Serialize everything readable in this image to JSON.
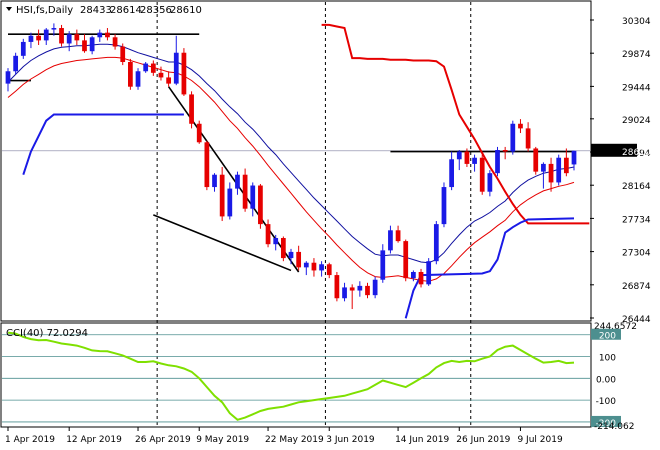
{
  "header": {
    "symbol_label": "HSI,fs,Daily",
    "ohlc": [
      "28433",
      "28614",
      "28356",
      "28610"
    ],
    "arrow_color": "#000000"
  },
  "indicator": {
    "label": "CCI(40) 72.0294",
    "levels": [
      100,
      0,
      -100,
      200,
      -200
    ],
    "scale_labels": [
      "244.6572",
      "200",
      "100",
      "0.00",
      "-100",
      "-200",
      "-214.062"
    ],
    "line_color": "#7fe000",
    "level_color": "#4d8f8f"
  },
  "colors": {
    "bull": "#1a1ae6",
    "bear": "#e60000",
    "ma_fast": "#1010a0",
    "ma_slow": "#e60000",
    "envelope": "#e60000",
    "support": "#1a1ae6",
    "current_price_box": "#000000"
  },
  "chart_data": {
    "type": "candlestick",
    "y_ticks": [
      30304,
      29874,
      29444,
      29024,
      28594,
      28164,
      27734,
      27304,
      26874,
      26444
    ],
    "ylim": [
      26444,
      30304
    ],
    "current_price": "28610",
    "x_tick_labels": [
      "1 Apr 2019",
      "12 Apr 2019",
      "26 Apr 2019",
      "9 May 2019",
      "22 May 2019",
      "3 Jun 2019",
      "14 Jun 2019",
      "26 Jun 2019",
      "9 Jul 2019"
    ],
    "x_tick_index": [
      0,
      8,
      17,
      25,
      34,
      42,
      51,
      59,
      67
    ],
    "n_bars": 75,
    "candles": [
      [
        29480,
        29680,
        29380,
        29640
      ],
      [
        29640,
        29880,
        29600,
        29840
      ],
      [
        29840,
        30060,
        29800,
        30020
      ],
      [
        30020,
        30140,
        29940,
        30100
      ],
      [
        30100,
        30180,
        29980,
        30040
      ],
      [
        30040,
        30200,
        29980,
        30180
      ],
      [
        30180,
        30260,
        30100,
        30200
      ],
      [
        30200,
        30240,
        29960,
        30000
      ],
      [
        30000,
        30160,
        29900,
        30120
      ],
      [
        30120,
        30180,
        29980,
        30040
      ],
      [
        30040,
        30120,
        29880,
        29900
      ],
      [
        29900,
        30100,
        29860,
        30080
      ],
      [
        30080,
        30180,
        30020,
        30140
      ],
      [
        30140,
        30200,
        30040,
        30080
      ],
      [
        30080,
        30120,
        29920,
        29960
      ],
      [
        29960,
        30000,
        29720,
        29760
      ],
      [
        29760,
        29800,
        29400,
        29440
      ],
      [
        29440,
        29680,
        29400,
        29640
      ],
      [
        29640,
        29760,
        29620,
        29740
      ],
      [
        29740,
        29780,
        29580,
        29620
      ],
      [
        29620,
        29700,
        29520,
        29560
      ],
      [
        29560,
        29640,
        29440,
        29480
      ],
      [
        29480,
        30100,
        29460,
        29880
      ],
      [
        29880,
        29940,
        29320,
        29340
      ],
      [
        29340,
        29380,
        28900,
        28960
      ],
      [
        28960,
        29000,
        28700,
        28720
      ],
      [
        28720,
        28740,
        28100,
        28140
      ],
      [
        28140,
        28320,
        28080,
        28300
      ],
      [
        28300,
        28400,
        27700,
        27760
      ],
      [
        27760,
        28200,
        27720,
        28120
      ],
      [
        28120,
        28340,
        28040,
        28300
      ],
      [
        28300,
        28380,
        27820,
        27860
      ],
      [
        27860,
        28200,
        27760,
        28160
      ],
      [
        28160,
        28180,
        27600,
        27660
      ],
      [
        27660,
        27720,
        27360,
        27400
      ],
      [
        27400,
        27520,
        27320,
        27480
      ],
      [
        27480,
        27500,
        27180,
        27220
      ],
      [
        27220,
        27340,
        27140,
        27300
      ],
      [
        27300,
        27380,
        27060,
        27100
      ],
      [
        27100,
        27180,
        27000,
        27160
      ],
      [
        27160,
        27220,
        26980,
        27060
      ],
      [
        27060,
        27180,
        26980,
        27140
      ],
      [
        27140,
        27160,
        26960,
        27000
      ],
      [
        27000,
        27040,
        26660,
        26700
      ],
      [
        26700,
        26900,
        26660,
        26840
      ],
      [
        26840,
        26880,
        26560,
        26800
      ],
      [
        26800,
        26920,
        26720,
        26860
      ],
      [
        26860,
        26900,
        26700,
        26740
      ],
      [
        26740,
        26980,
        26700,
        26940
      ],
      [
        26940,
        27400,
        26900,
        27320
      ],
      [
        27320,
        27640,
        27280,
        27580
      ],
      [
        27580,
        27640,
        27420,
        27440
      ],
      [
        27440,
        27460,
        26920,
        26960
      ],
      [
        26960,
        27060,
        26920,
        27040
      ],
      [
        27040,
        27080,
        26840,
        26880
      ],
      [
        26880,
        27220,
        26860,
        27180
      ],
      [
        27180,
        27700,
        27140,
        27660
      ],
      [
        27660,
        28200,
        27620,
        28140
      ],
      [
        28140,
        28600,
        28100,
        28500
      ],
      [
        28500,
        28620,
        28360,
        28600
      ],
      [
        28600,
        28640,
        28400,
        28440
      ],
      [
        28440,
        28560,
        28340,
        28520
      ],
      [
        28520,
        28560,
        28040,
        28080
      ],
      [
        28080,
        28360,
        28020,
        28320
      ],
      [
        28320,
        28660,
        28280,
        28620
      ],
      [
        28620,
        28660,
        28500,
        28600
      ],
      [
        28600,
        29000,
        28560,
        28960
      ],
      [
        28960,
        29020,
        28840,
        28900
      ],
      [
        28900,
        28980,
        28600,
        28640
      ],
      [
        28640,
        28660,
        28300,
        28340
      ],
      [
        28340,
        28460,
        28120,
        28440
      ],
      [
        28440,
        28520,
        28080,
        28200
      ],
      [
        28200,
        28560,
        28160,
        28520
      ],
      [
        28520,
        28640,
        28280,
        28320
      ],
      [
        28433,
        28614,
        28356,
        28610
      ]
    ],
    "ma_fast": [
      29500,
      29600,
      29700,
      29780,
      29840,
      29890,
      29930,
      29950,
      29960,
      29970,
      29970,
      29980,
      29990,
      29990,
      29980,
      29960,
      29920,
      29880,
      29850,
      29820,
      29790,
      29760,
      29760,
      29720,
      29660,
      29580,
      29480,
      29390,
      29280,
      29180,
      29090,
      28980,
      28890,
      28780,
      28660,
      28560,
      28440,
      28330,
      28220,
      28110,
      28000,
      27900,
      27800,
      27700,
      27600,
      27500,
      27420,
      27340,
      27270,
      27250,
      27260,
      27260,
      27230,
      27200,
      27170,
      27160,
      27200,
      27290,
      27410,
      27520,
      27620,
      27700,
      27750,
      27810,
      27890,
      27960,
      28070,
      28160,
      28230,
      28280,
      28320,
      28340,
      28370,
      28380,
      28400
    ],
    "ma_slow": [
      29300,
      29380,
      29470,
      29540,
      29600,
      29660,
      29710,
      29740,
      29760,
      29780,
      29790,
      29800,
      29810,
      29820,
      29820,
      29810,
      29780,
      29750,
      29720,
      29690,
      29660,
      29630,
      29620,
      29580,
      29520,
      29440,
      29340,
      29240,
      29120,
      29000,
      28900,
      28780,
      28670,
      28550,
      28420,
      28300,
      28180,
      28060,
      27940,
      27820,
      27710,
      27600,
      27500,
      27390,
      27290,
      27190,
      27100,
      27030,
      26980,
      26970,
      26980,
      26990,
      26970,
      26950,
      26930,
      26920,
      26950,
      27020,
      27120,
      27230,
      27330,
      27420,
      27490,
      27560,
      27640,
      27710,
      27820,
      27910,
      27980,
      28040,
      28090,
      28120,
      28150,
      28170,
      28200
    ],
    "envelope_upper": [
      null,
      null,
      null,
      null,
      null,
      null,
      null,
      null,
      null,
      null,
      null,
      null,
      null,
      null,
      null,
      null,
      null,
      null,
      null,
      null,
      null,
      30240,
      30240,
      30220,
      30200,
      29810,
      29810,
      29800,
      29800,
      29800,
      29790,
      29790,
      29790,
      29780,
      29780,
      29780,
      29770,
      29700,
      29400,
      29080,
      28920,
      28760,
      28580,
      28400,
      28250,
      28080,
      27920,
      27780,
      27670,
      27670,
      27670,
      27670,
      27670,
      27670,
      27670,
      27670,
      27670
    ],
    "envelope_upper_start": 20,
    "support_line": [
      null,
      null,
      28300,
      28600,
      28800,
      29000,
      29080,
      29080,
      29080,
      29080,
      29080,
      29080,
      29080,
      29080,
      29080,
      29080,
      29080,
      29080,
      29080,
      29080,
      29080,
      29080,
      29080,
      29080
    ],
    "support2": [
      {
        "i": 52,
        "v": 26440
      },
      {
        "i": 53,
        "v": 26800
      },
      {
        "i": 54,
        "v": 27000
      },
      {
        "i": 62,
        "v": 27020
      },
      {
        "i": 63,
        "v": 27050
      },
      {
        "i": 64,
        "v": 27200
      },
      {
        "i": 65,
        "v": 27550
      },
      {
        "i": 66,
        "v": 27620
      },
      {
        "i": 67,
        "v": 27680
      },
      {
        "i": 68,
        "v": 27720
      },
      {
        "i": 74,
        "v": 27734
      }
    ],
    "trend_lines": [
      {
        "from": [
          0,
          30120
        ],
        "to": [
          25,
          30120
        ],
        "color": "#000000"
      },
      {
        "from": [
          0,
          29520
        ],
        "to": [
          3,
          29520
        ],
        "color": "#000000"
      },
      {
        "from": [
          21,
          29440
        ],
        "to": [
          38,
          27040
        ],
        "color": "#000000"
      },
      {
        "from": [
          19,
          27780
        ],
        "to": [
          37,
          27060
        ],
        "color": "#000000"
      },
      {
        "from": [
          50,
          28600
        ],
        "to": [
          74,
          28600
        ],
        "color": "#000000"
      }
    ],
    "vertical_markers": [
      19,
      41,
      60
    ],
    "cci": [
      210,
      205,
      190,
      180,
      175,
      176,
      168,
      160,
      155,
      150,
      140,
      128,
      125,
      124,
      115,
      105,
      90,
      75,
      75,
      78,
      68,
      60,
      55,
      45,
      30,
      0,
      -40,
      -80,
      -110,
      -160,
      -190,
      -180,
      -165,
      -150,
      -140,
      -135,
      -130,
      -120,
      -110,
      -105,
      -100,
      -95,
      -90,
      -85,
      -80,
      -70,
      -60,
      -50,
      -30,
      -10,
      -20,
      -30,
      -40,
      -20,
      0,
      20,
      50,
      70,
      80,
      75,
      80,
      78,
      90,
      100,
      130,
      145,
      150,
      130,
      110,
      90,
      72,
      75,
      80,
      70,
      72
    ],
    "cci_range": [
      -214.062,
      244.6572
    ]
  }
}
